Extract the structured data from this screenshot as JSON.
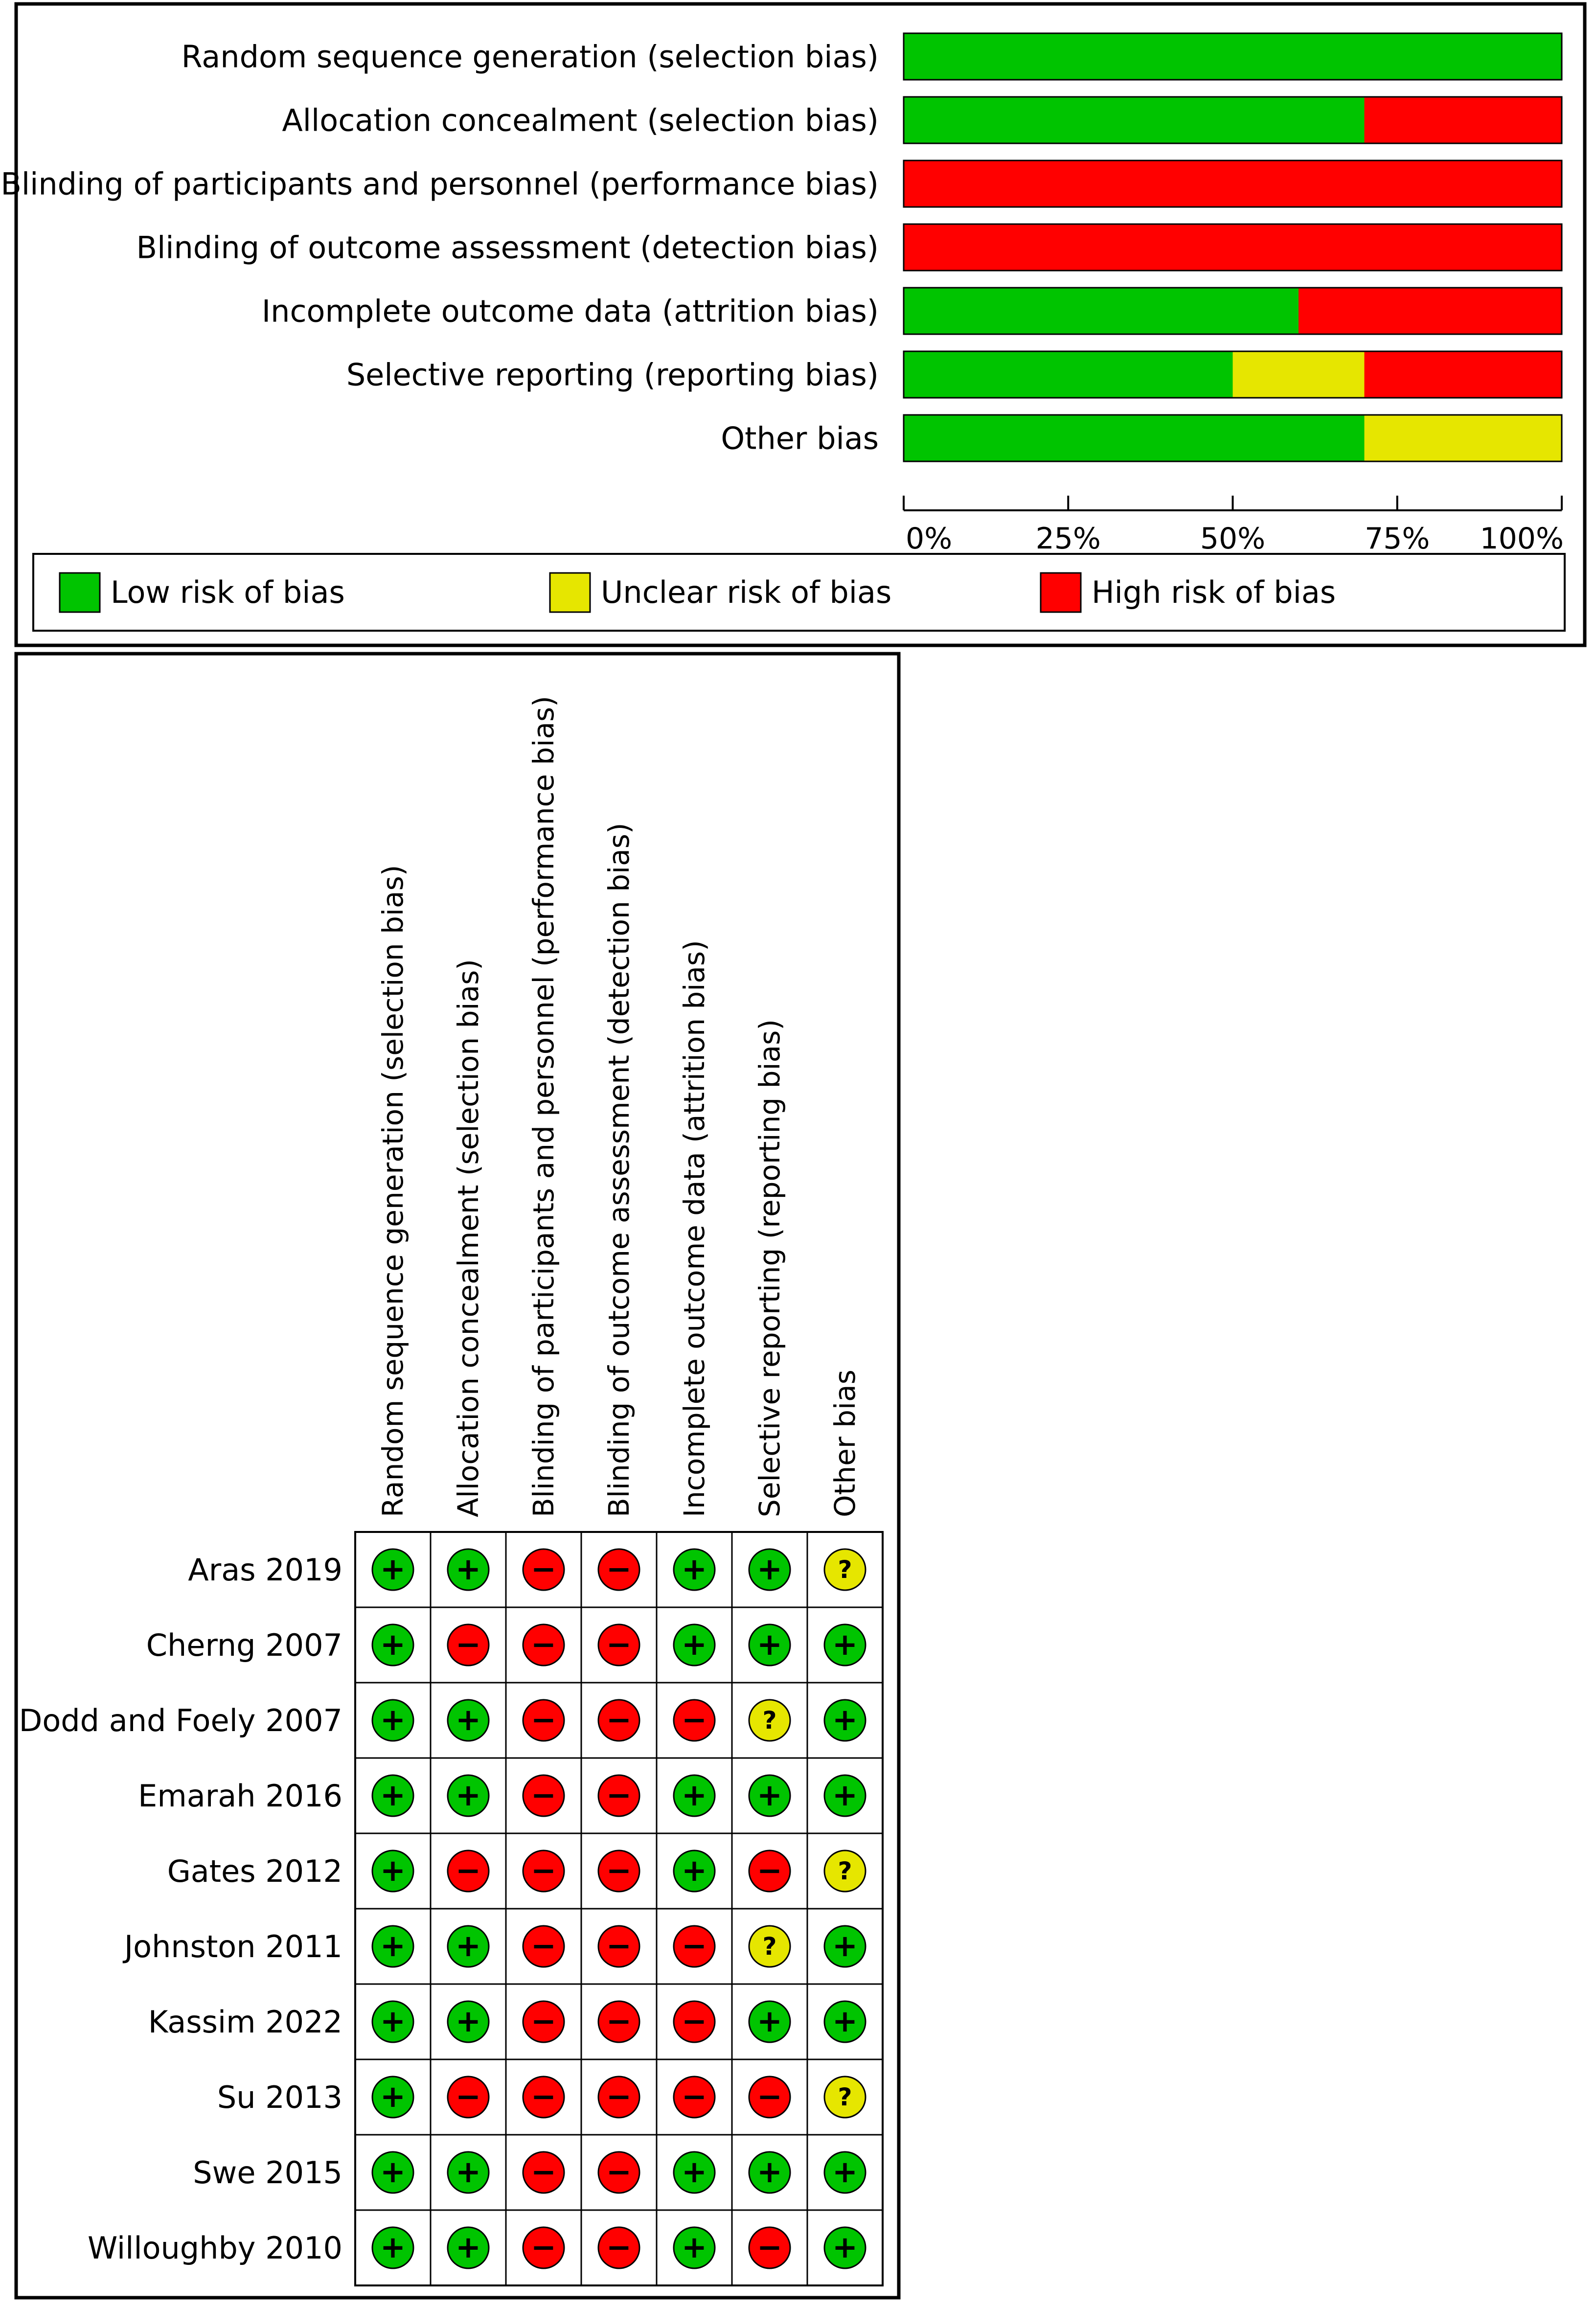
{
  "colors": {
    "low": "#00C400",
    "unclear": "#E6E600",
    "high": "#FF0000",
    "frame": "#000000"
  },
  "chart_data": [
    {
      "type": "bar",
      "orientation": "horizontal",
      "stacked": true,
      "categories": [
        "Random sequence generation (selection bias)",
        "Allocation concealment (selection bias)",
        "Blinding of participants and personnel (performance bias)",
        "Blinding of outcome assessment (detection bias)",
        "Incomplete outcome data (attrition bias)",
        "Selective reporting (reporting bias)",
        "Other bias"
      ],
      "series": [
        {
          "name": "Low risk of bias",
          "color": "#00C400",
          "values": [
            100,
            70,
            0,
            0,
            60,
            50,
            70
          ]
        },
        {
          "name": "Unclear risk of bias",
          "color": "#E6E600",
          "values": [
            0,
            0,
            0,
            0,
            0,
            20,
            30
          ]
        },
        {
          "name": "High risk of bias",
          "color": "#FF0000",
          "values": [
            0,
            30,
            100,
            100,
            40,
            30,
            0
          ]
        }
      ],
      "xlim": [
        0,
        100
      ],
      "xticks": [
        "0%",
        "25%",
        "50%",
        "75%",
        "100%"
      ],
      "legend": "bottom",
      "grid": false
    },
    {
      "type": "table",
      "columns": [
        "Random sequence generation (selection bias)",
        "Allocation concealment (selection bias)",
        "Blinding of participants and personnel (performance bias)",
        "Blinding of outcome assessment (detection bias)",
        "Incomplete outcome data (attrition bias)",
        "Selective reporting (reporting bias)",
        "Other bias"
      ],
      "symbols": {
        "low": "+",
        "high": "−",
        "unclear": "?"
      },
      "rows": [
        {
          "study": "Aras 2019",
          "ratings": [
            "low",
            "low",
            "high",
            "high",
            "low",
            "low",
            "unclear"
          ]
        },
        {
          "study": "Cherng 2007",
          "ratings": [
            "low",
            "high",
            "high",
            "high",
            "low",
            "low",
            "low"
          ]
        },
        {
          "study": "Dodd and Foely 2007",
          "ratings": [
            "low",
            "low",
            "high",
            "high",
            "high",
            "unclear",
            "low"
          ]
        },
        {
          "study": "Emarah 2016",
          "ratings": [
            "low",
            "low",
            "high",
            "high",
            "low",
            "low",
            "low"
          ]
        },
        {
          "study": "Gates 2012",
          "ratings": [
            "low",
            "high",
            "high",
            "high",
            "low",
            "high",
            "unclear"
          ]
        },
        {
          "study": "Johnston 2011",
          "ratings": [
            "low",
            "low",
            "high",
            "high",
            "high",
            "unclear",
            "low"
          ]
        },
        {
          "study": "Kassim 2022",
          "ratings": [
            "low",
            "low",
            "high",
            "high",
            "high",
            "low",
            "low"
          ]
        },
        {
          "study": "Su 2013",
          "ratings": [
            "low",
            "high",
            "high",
            "high",
            "high",
            "high",
            "unclear"
          ]
        },
        {
          "study": "Swe 2015",
          "ratings": [
            "low",
            "low",
            "high",
            "high",
            "low",
            "low",
            "low"
          ]
        },
        {
          "study": "Willoughby 2010",
          "ratings": [
            "low",
            "low",
            "high",
            "high",
            "low",
            "high",
            "low"
          ]
        }
      ]
    }
  ]
}
